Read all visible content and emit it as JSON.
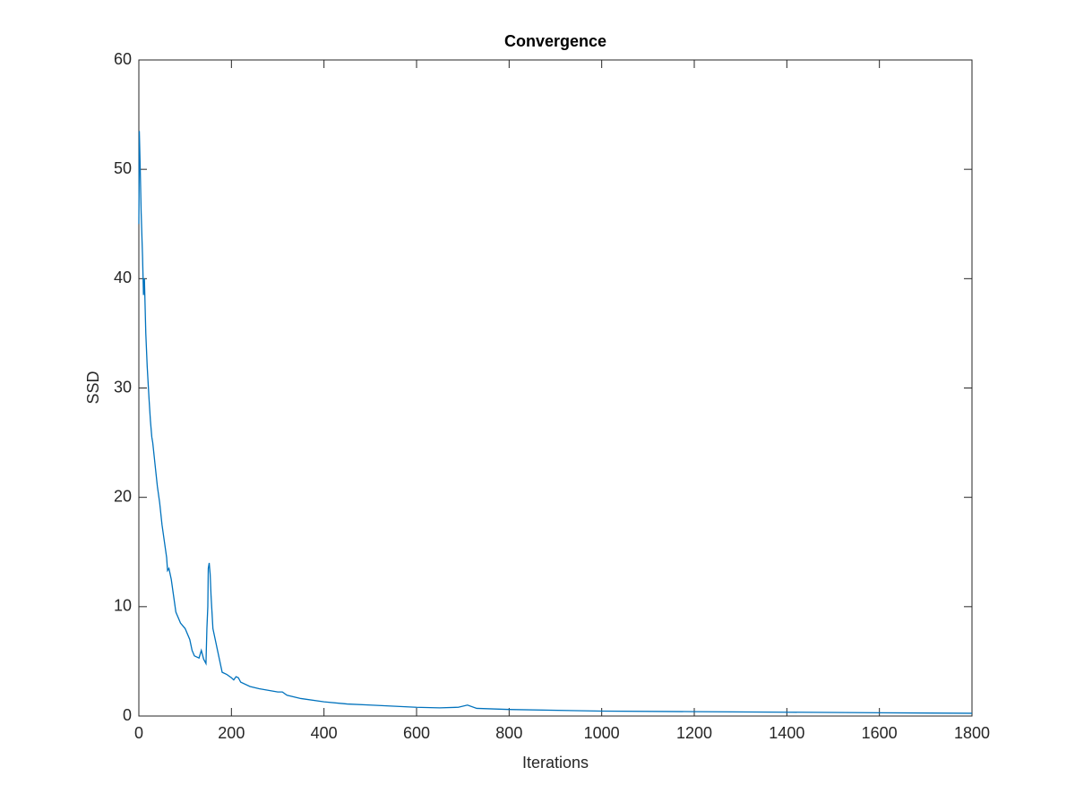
{
  "chart_data": {
    "type": "line",
    "title": "Convergence",
    "xlabel": "Iterations",
    "ylabel": "SSD",
    "x": [
      0,
      1,
      3,
      5,
      8,
      10,
      12,
      15,
      18,
      20,
      22,
      25,
      28,
      30,
      35,
      40,
      45,
      50,
      55,
      60,
      62,
      65,
      70,
      75,
      80,
      85,
      90,
      100,
      110,
      115,
      120,
      130,
      135,
      140,
      145,
      147,
      149,
      150,
      152,
      154,
      156,
      160,
      165,
      170,
      180,
      190,
      200,
      205,
      210,
      215,
      220,
      240,
      260,
      300,
      310,
      320,
      350,
      400,
      450,
      500,
      600,
      650,
      690,
      710,
      730,
      800,
      1000,
      1200,
      1400,
      1600,
      1800
    ],
    "values": [
      45,
      53.5,
      50,
      46,
      42,
      38.5,
      40,
      35,
      32,
      30.5,
      29,
      27,
      25.5,
      25,
      23,
      21,
      19.5,
      17.5,
      16,
      14.5,
      13.3,
      13.5,
      12.5,
      11,
      9.5,
      9,
      8.5,
      8,
      7,
      6,
      5.5,
      5.3,
      6,
      5.2,
      4.8,
      8,
      10,
      13.5,
      14,
      13,
      11,
      8,
      7,
      6,
      4,
      3.8,
      3.5,
      3.3,
      3.6,
      3.5,
      3.1,
      2.7,
      2.5,
      2.2,
      2.2,
      1.9,
      1.6,
      1.3,
      1.1,
      1.0,
      0.8,
      0.75,
      0.8,
      1.0,
      0.7,
      0.6,
      0.45,
      0.4,
      0.35,
      0.3,
      0.25
    ],
    "color": "#0072bd",
    "xlim": [
      0,
      1800
    ],
    "xticks": [
      0,
      200,
      400,
      600,
      800,
      1000,
      1200,
      1400,
      1600,
      1800
    ],
    "ylim": [
      0,
      60
    ],
    "yticks": [
      0,
      10,
      20,
      30,
      40,
      50,
      60
    ]
  }
}
